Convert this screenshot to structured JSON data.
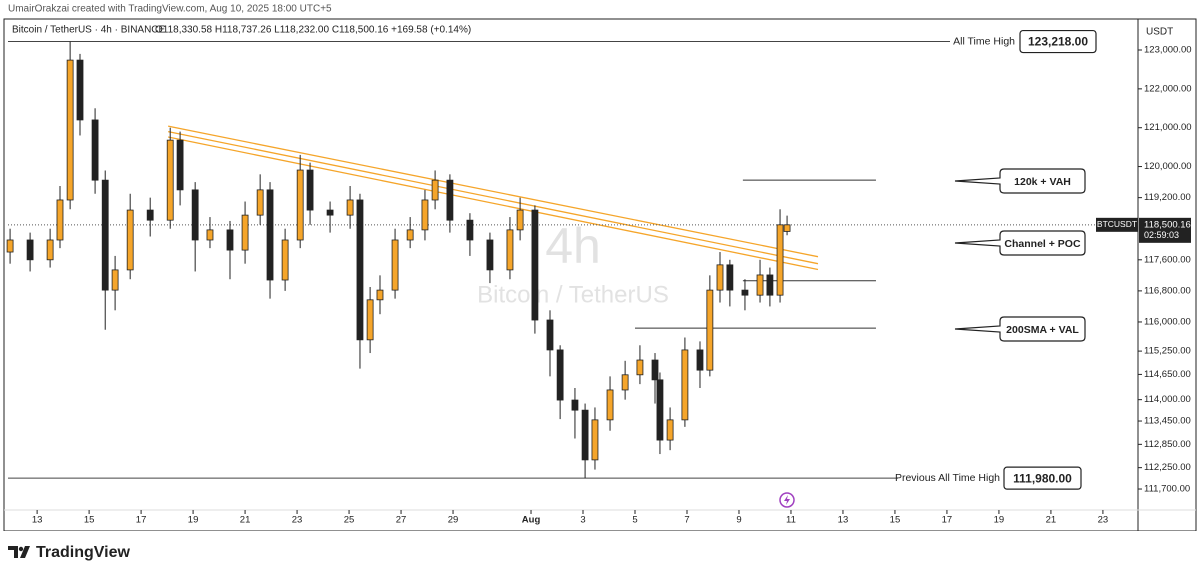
{
  "header": "UmairOrakzai created with TradingView.com, Aug 10, 2025 18:00 UTC+5",
  "footer": "TradingView",
  "chart_data": {
    "type": "candlestick",
    "title": "Bitcoin / TetherUS · 4h · BINANCE",
    "ohlc_text": "O118,330.58 H118,737.26 L118,232.00 C118,500.16 +169.58 (+0.14%)",
    "watermark": [
      "4h",
      "Bitcoin / TetherUS"
    ],
    "currency": "USDT",
    "up_color": "#f5a52a",
    "down_color": "#222222",
    "x": [
      -1.04,
      -0.27,
      0.5,
      0.88,
      1.27,
      1.65,
      2.23,
      2.62,
      3.0,
      3.58,
      4.35,
      5.12,
      5.5,
      6.08,
      6.65,
      7.42,
      8.0,
      8.58,
      8.96,
      9.54,
      10.12,
      10.5,
      11.27,
      12.04,
      12.42,
      12.81,
      13.19,
      13.77,
      14.35,
      14.92,
      15.31,
      15.88,
      16.65,
      17.42,
      18.19,
      18.58,
      19.15,
      19.73,
      20.12,
      20.69,
      21.08,
      21.46,
      22.04,
      22.62,
      23.19,
      23.77,
      23.96,
      24.35,
      24.92,
      25.5,
      25.88,
      26.27,
      26.65,
      27.23,
      27.81,
      28.19,
      28.58,
      28.85
    ],
    "open": [
      117800,
      118110,
      117600,
      118110,
      119140,
      122740,
      121200,
      119650,
      116820,
      117340,
      118880,
      118620,
      120680,
      119400,
      118110,
      118370,
      117850,
      118750,
      119400,
      117080,
      118110,
      119910,
      118880,
      118750,
      119140,
      115540,
      116570,
      116820,
      118110,
      118370,
      119140,
      119650,
      118620,
      118110,
      117340,
      118370,
      118880,
      116050,
      115280,
      113990,
      113730,
      112450,
      113480,
      114250,
      114640,
      115020,
      114510,
      112960,
      113480,
      115280,
      114760,
      116820,
      117470,
      116820,
      116690,
      117210,
      116690,
      118330
    ],
    "high": [
      118400,
      118300,
      118400,
      119500,
      123218,
      122900,
      121500,
      119900,
      117700,
      119300,
      119200,
      121000,
      120900,
      119600,
      118700,
      118600,
      119100,
      119800,
      119600,
      118400,
      120300,
      120100,
      119100,
      119500,
      119300,
      116900,
      117200,
      118400,
      118700,
      119400,
      119900,
      119800,
      118800,
      118300,
      118700,
      119200,
      119000,
      116300,
      115400,
      114300,
      113900,
      113800,
      114600,
      115000,
      115400,
      115200,
      114700,
      113800,
      115600,
      115500,
      117200,
      117800,
      117600,
      117100,
      117600,
      117400,
      118900,
      118737
    ],
    "low": [
      117500,
      117300,
      117400,
      117900,
      118900,
      120800,
      119300,
      115800,
      116300,
      117100,
      118200,
      118400,
      119000,
      117300,
      117900,
      117100,
      117500,
      118500,
      116600,
      116800,
      117900,
      118500,
      118300,
      118400,
      114800,
      115200,
      116200,
      116600,
      117900,
      118100,
      118900,
      118300,
      117700,
      117000,
      117100,
      118100,
      115700,
      114600,
      113500,
      113000,
      111980,
      112200,
      113200,
      114000,
      114400,
      113900,
      112600,
      112700,
      113300,
      114300,
      114600,
      116500,
      116400,
      116300,
      116500,
      116400,
      116500,
      118232
    ],
    "close": [
      118110,
      117600,
      118110,
      119140,
      122740,
      121200,
      119650,
      116820,
      117340,
      118880,
      118620,
      120680,
      119400,
      118110,
      118370,
      117850,
      118750,
      119400,
      117080,
      118110,
      119910,
      118880,
      118750,
      119140,
      115540,
      116570,
      116820,
      118110,
      118370,
      119140,
      119650,
      118620,
      118110,
      117340,
      118370,
      118880,
      116050,
      115280,
      113990,
      113730,
      112450,
      113480,
      114250,
      114640,
      115020,
      114510,
      112960,
      113480,
      115280,
      114760,
      116820,
      117470,
      116820,
      116690,
      117210,
      116690,
      118500,
      118500
    ],
    "xlim": [
      -1.12,
      42.35
    ],
    "ylim": [
      111160,
      123515
    ],
    "xticks": [
      {
        "value": 0,
        "label": "13"
      },
      {
        "value": 2,
        "label": "15"
      },
      {
        "value": 4,
        "label": "17"
      },
      {
        "value": 6,
        "label": "19"
      },
      {
        "value": 8,
        "label": "21"
      },
      {
        "value": 10,
        "label": "23"
      },
      {
        "value": 12,
        "label": "25"
      },
      {
        "value": 14,
        "label": "27"
      },
      {
        "value": 16,
        "label": "29"
      },
      {
        "value": 19,
        "label": "Aug"
      },
      {
        "value": 21,
        "label": "3"
      },
      {
        "value": 23,
        "label": "5"
      },
      {
        "value": 25,
        "label": "7"
      },
      {
        "value": 27,
        "label": "9"
      },
      {
        "value": 29,
        "label": "11"
      },
      {
        "value": 31,
        "label": "13"
      },
      {
        "value": 33,
        "label": "15"
      },
      {
        "value": 35,
        "label": "17"
      },
      {
        "value": 37,
        "label": "19"
      },
      {
        "value": 39,
        "label": "21"
      },
      {
        "value": 41,
        "label": "23"
      }
    ],
    "yticks": [
      {
        "value": 123000,
        "label": "123,000.00"
      },
      {
        "value": 122000,
        "label": "122,000.00"
      },
      {
        "value": 121000,
        "label": "121,000.00"
      },
      {
        "value": 120000,
        "label": "120,000.00"
      },
      {
        "value": 119200,
        "label": "119,200.00"
      },
      {
        "value": 117600,
        "label": "117,600.00"
      },
      {
        "value": 116800,
        "label": "116,800.00"
      },
      {
        "value": 116000,
        "label": "116,000.00"
      },
      {
        "value": 115250,
        "label": "115,250.00"
      },
      {
        "value": 114650,
        "label": "114,650.00"
      },
      {
        "value": 114000,
        "label": "114,000.00"
      },
      {
        "value": 113450,
        "label": "113,450.00"
      },
      {
        "value": 112850,
        "label": "112,850.00"
      },
      {
        "value": 112250,
        "label": "112,250.00"
      },
      {
        "value": 111700,
        "label": "111,700.00"
      }
    ],
    "levels": [
      {
        "name": "All Time High",
        "value": 123218,
        "label": "123,218.00"
      },
      {
        "name": "Previous All Time High",
        "value": 111980,
        "label": "111,980.00"
      }
    ],
    "zones": [
      {
        "name": "120k + VAH",
        "value": 119650,
        "x": [
          27.15,
          32.27
        ]
      },
      {
        "name": "Channel + POC",
        "value": 117060,
        "x": [
          27.15,
          32.27
        ]
      },
      {
        "name": "200SMA + VAL",
        "value": 115840,
        "x": [
          23.0,
          32.27
        ]
      }
    ],
    "channel": {
      "color": "#f5a52a",
      "x": [
        5.04,
        30.04
      ],
      "lines": [
        [
          121040,
          117680
        ],
        [
          120900,
          117500
        ],
        [
          120760,
          117350
        ]
      ]
    },
    "last_price": {
      "symbol": "BTCUSDT",
      "value": 118500.16,
      "label": "118,500.16",
      "countdown": "02:59:03"
    }
  }
}
